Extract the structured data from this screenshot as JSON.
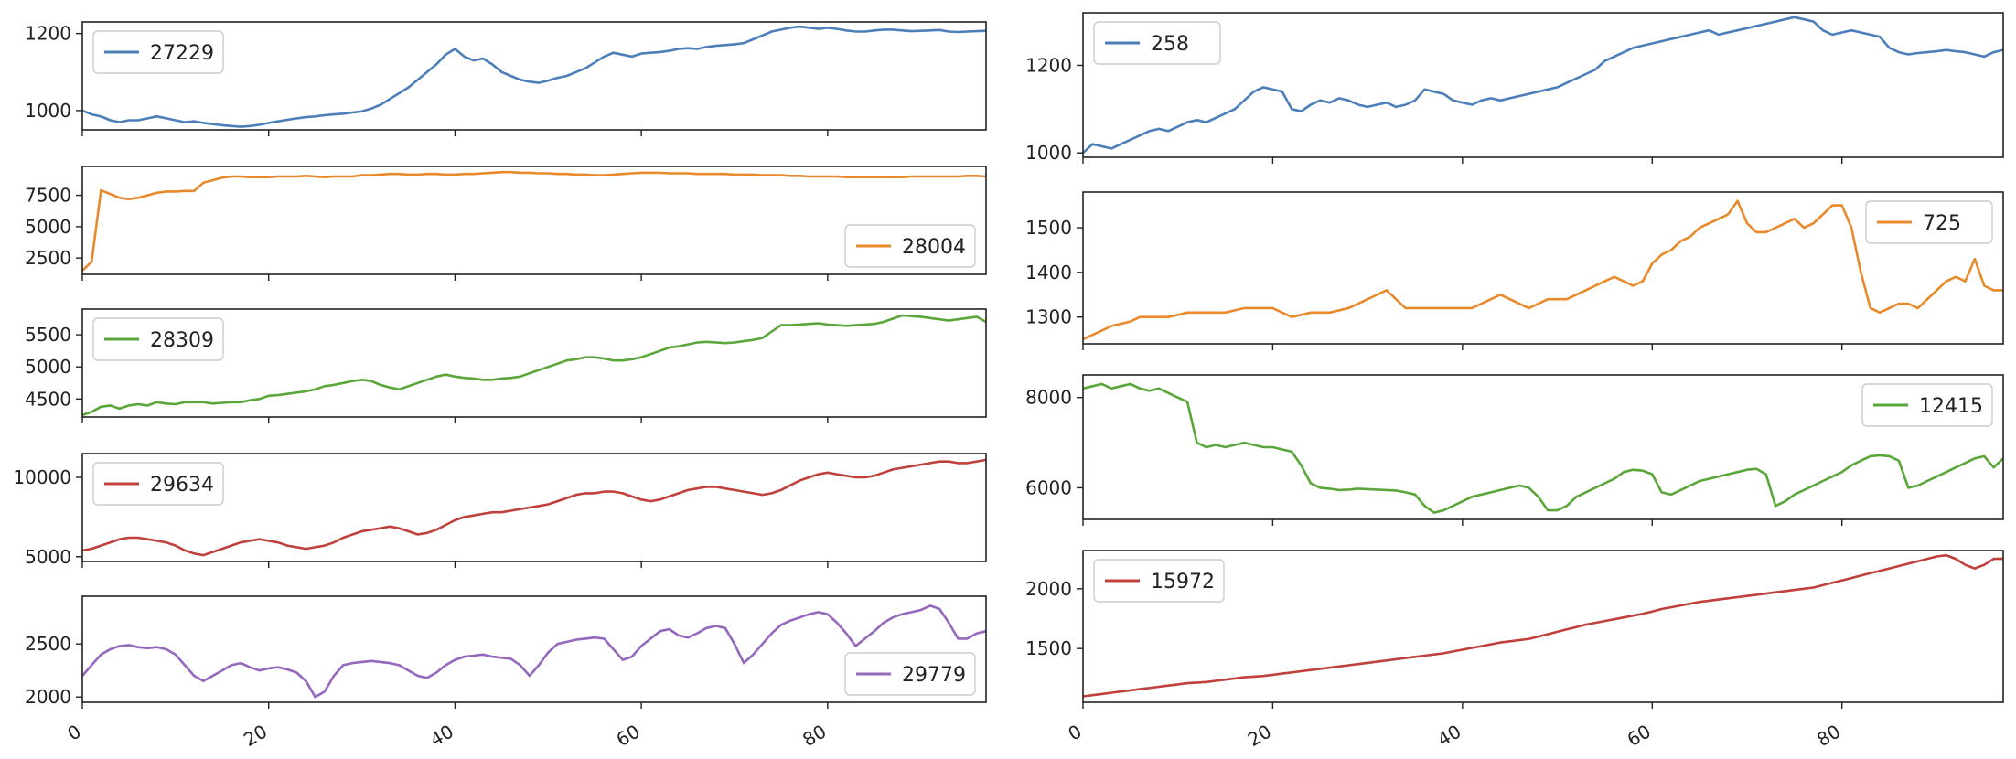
{
  "chart_data": [
    {
      "type": "line",
      "panel": "left-1",
      "x_start": 0,
      "ylim": [
        950,
        1230
      ],
      "yticks": [
        1000,
        1200
      ],
      "xticks_shown": false,
      "legend": "upper left",
      "series": [
        {
          "name": "27229",
          "color": "#4c7fba",
          "values": [
            1000,
            990,
            985,
            975,
            970,
            975,
            975,
            980,
            985,
            980,
            975,
            970,
            972,
            968,
            965,
            962,
            960,
            958,
            960,
            963,
            968,
            972,
            976,
            980,
            983,
            985,
            988,
            990,
            992,
            995,
            998,
            1005,
            1015,
            1030,
            1045,
            1060,
            1080,
            1100,
            1120,
            1145,
            1160,
            1140,
            1130,
            1135,
            1120,
            1100,
            1090,
            1080,
            1075,
            1072,
            1078,
            1085,
            1090,
            1100,
            1110,
            1125,
            1140,
            1150,
            1145,
            1140,
            1148,
            1150,
            1152,
            1155,
            1160,
            1162,
            1160,
            1165,
            1168,
            1170,
            1172,
            1175,
            1185,
            1195,
            1205,
            1210,
            1215,
            1218,
            1215,
            1212,
            1215,
            1212,
            1208,
            1205,
            1205,
            1208,
            1210,
            1210,
            1208,
            1206,
            1207,
            1208,
            1209,
            1205,
            1204,
            1205,
            1206,
            1207
          ]
        }
      ]
    },
    {
      "type": "line",
      "panel": "left-2",
      "x_start": 0,
      "ylim": [
        1200,
        9800
      ],
      "yticks": [
        2500,
        5000,
        7500
      ],
      "xticks_shown": false,
      "legend": "lower right",
      "series": [
        {
          "name": "28004",
          "color": "#e8892b",
          "values": [
            1500,
            2200,
            7900,
            7600,
            7300,
            7200,
            7300,
            7500,
            7700,
            7800,
            7800,
            7850,
            7850,
            8500,
            8700,
            8900,
            9000,
            9000,
            8950,
            8950,
            8950,
            9000,
            9000,
            9000,
            9050,
            9000,
            8950,
            9000,
            9000,
            9000,
            9100,
            9100,
            9150,
            9200,
            9200,
            9150,
            9150,
            9200,
            9200,
            9150,
            9150,
            9200,
            9200,
            9250,
            9300,
            9350,
            9350,
            9300,
            9300,
            9250,
            9250,
            9200,
            9200,
            9150,
            9150,
            9100,
            9100,
            9150,
            9200,
            9250,
            9300,
            9300,
            9300,
            9250,
            9250,
            9250,
            9200,
            9200,
            9200,
            9200,
            9150,
            9150,
            9150,
            9100,
            9100,
            9100,
            9050,
            9050,
            9000,
            9000,
            9000,
            9000,
            8950,
            8950,
            8950,
            8950,
            8950,
            8950,
            8950,
            9000,
            9000,
            9000,
            9000,
            9000,
            9000,
            9050,
            9050,
            9000
          ]
        }
      ]
    },
    {
      "type": "line",
      "panel": "left-3",
      "x_start": 0,
      "ylim": [
        4220,
        5900
      ],
      "yticks": [
        4500,
        5000,
        5500
      ],
      "xticks_shown": false,
      "legend": "upper left",
      "series": [
        {
          "name": "28309",
          "color": "#5aa63b",
          "values": [
            4250,
            4300,
            4380,
            4400,
            4350,
            4400,
            4420,
            4400,
            4450,
            4430,
            4420,
            4450,
            4450,
            4450,
            4430,
            4440,
            4450,
            4450,
            4480,
            4500,
            4550,
            4560,
            4580,
            4600,
            4620,
            4650,
            4700,
            4720,
            4750,
            4780,
            4800,
            4780,
            4720,
            4680,
            4650,
            4700,
            4750,
            4800,
            4850,
            4880,
            4850,
            4830,
            4820,
            4800,
            4800,
            4820,
            4830,
            4850,
            4900,
            4950,
            5000,
            5050,
            5100,
            5120,
            5150,
            5150,
            5130,
            5100,
            5100,
            5120,
            5150,
            5200,
            5250,
            5300,
            5320,
            5350,
            5380,
            5390,
            5380,
            5370,
            5380,
            5400,
            5420,
            5450,
            5550,
            5650,
            5650,
            5660,
            5670,
            5680,
            5660,
            5650,
            5640,
            5650,
            5660,
            5670,
            5700,
            5750,
            5800,
            5790,
            5780,
            5760,
            5740,
            5720,
            5740,
            5760,
            5780,
            5700
          ]
        }
      ]
    },
    {
      "type": "line",
      "panel": "left-4",
      "x_start": 0,
      "ylim": [
        4700,
        11500
      ],
      "yticks": [
        5000,
        10000
      ],
      "xticks_shown": false,
      "legend": "upper left",
      "series": [
        {
          "name": "29634",
          "color": "#c0413b",
          "values": [
            5400,
            5500,
            5700,
            5900,
            6100,
            6200,
            6200,
            6100,
            6000,
            5900,
            5700,
            5400,
            5200,
            5100,
            5300,
            5500,
            5700,
            5900,
            6000,
            6100,
            6000,
            5900,
            5700,
            5600,
            5500,
            5600,
            5700,
            5900,
            6200,
            6400,
            6600,
            6700,
            6800,
            6900,
            6800,
            6600,
            6400,
            6500,
            6700,
            7000,
            7300,
            7500,
            7600,
            7700,
            7800,
            7800,
            7900,
            8000,
            8100,
            8200,
            8300,
            8500,
            8700,
            8900,
            9000,
            9000,
            9100,
            9100,
            9000,
            8800,
            8600,
            8500,
            8600,
            8800,
            9000,
            9200,
            9300,
            9400,
            9400,
            9300,
            9200,
            9100,
            9000,
            8900,
            9000,
            9200,
            9500,
            9800,
            10000,
            10200,
            10300,
            10200,
            10100,
            10000,
            10000,
            10100,
            10300,
            10500,
            10600,
            10700,
            10800,
            10900,
            11000,
            11000,
            10900,
            10900,
            11000,
            11100
          ]
        }
      ]
    },
    {
      "type": "line",
      "panel": "left-5",
      "x_start": 0,
      "ylim": [
        1950,
        2950
      ],
      "yticks": [
        2000,
        2500
      ],
      "xticks": [
        0,
        20,
        40,
        60,
        80
      ],
      "legend": "lower right",
      "series": [
        {
          "name": "29779",
          "color": "#9468bd",
          "values": [
            2200,
            2300,
            2400,
            2450,
            2480,
            2490,
            2470,
            2460,
            2470,
            2450,
            2400,
            2300,
            2200,
            2150,
            2200,
            2250,
            2300,
            2320,
            2280,
            2250,
            2270,
            2280,
            2260,
            2230,
            2150,
            2000,
            2050,
            2200,
            2300,
            2320,
            2330,
            2340,
            2330,
            2320,
            2300,
            2250,
            2200,
            2180,
            2230,
            2300,
            2350,
            2380,
            2390,
            2400,
            2380,
            2370,
            2360,
            2300,
            2200,
            2300,
            2420,
            2500,
            2520,
            2540,
            2550,
            2560,
            2550,
            2450,
            2350,
            2380,
            2480,
            2550,
            2620,
            2640,
            2580,
            2560,
            2600,
            2650,
            2670,
            2650,
            2500,
            2320,
            2400,
            2500,
            2600,
            2680,
            2720,
            2750,
            2780,
            2800,
            2780,
            2700,
            2600,
            2480,
            2550,
            2620,
            2700,
            2750,
            2780,
            2800,
            2820,
            2860,
            2830,
            2700,
            2550,
            2550,
            2600,
            2620
          ]
        }
      ]
    },
    {
      "type": "line",
      "panel": "right-1",
      "x_start": 0,
      "ylim": [
        990,
        1320
      ],
      "yticks": [
        1000,
        1200
      ],
      "xticks_shown": false,
      "legend": "upper left",
      "series": [
        {
          "name": "258",
          "color": "#4c7fba",
          "values": [
            1000,
            1020,
            1015,
            1010,
            1020,
            1030,
            1040,
            1050,
            1055,
            1050,
            1060,
            1070,
            1075,
            1070,
            1080,
            1090,
            1100,
            1120,
            1140,
            1150,
            1145,
            1140,
            1100,
            1095,
            1110,
            1120,
            1115,
            1125,
            1120,
            1110,
            1105,
            1110,
            1115,
            1105,
            1110,
            1120,
            1145,
            1140,
            1135,
            1120,
            1115,
            1110,
            1120,
            1125,
            1120,
            1125,
            1130,
            1135,
            1140,
            1145,
            1150,
            1160,
            1170,
            1180,
            1190,
            1210,
            1220,
            1230,
            1240,
            1245,
            1250,
            1255,
            1260,
            1265,
            1270,
            1275,
            1280,
            1270,
            1275,
            1280,
            1285,
            1290,
            1295,
            1300,
            1305,
            1310,
            1305,
            1300,
            1280,
            1270,
            1275,
            1280,
            1275,
            1270,
            1265,
            1240,
            1230,
            1225,
            1228,
            1230,
            1232,
            1235,
            1232,
            1230,
            1225,
            1220,
            1230,
            1235
          ]
        }
      ]
    },
    {
      "type": "line",
      "panel": "right-2",
      "x_start": 0,
      "ylim": [
        1240,
        1580
      ],
      "yticks": [
        1300,
        1400,
        1500
      ],
      "xticks_shown": false,
      "legend": "upper right",
      "series": [
        {
          "name": "725",
          "color": "#e8892b",
          "values": [
            1250,
            1260,
            1270,
            1280,
            1285,
            1290,
            1300,
            1300,
            1300,
            1300,
            1305,
            1310,
            1310,
            1310,
            1310,
            1310,
            1315,
            1320,
            1320,
            1320,
            1320,
            1310,
            1300,
            1305,
            1310,
            1310,
            1310,
            1315,
            1320,
            1330,
            1340,
            1350,
            1360,
            1340,
            1320,
            1320,
            1320,
            1320,
            1320,
            1320,
            1320,
            1320,
            1330,
            1340,
            1350,
            1340,
            1330,
            1320,
            1330,
            1340,
            1340,
            1340,
            1350,
            1360,
            1370,
            1380,
            1390,
            1380,
            1370,
            1380,
            1420,
            1440,
            1450,
            1470,
            1480,
            1500,
            1510,
            1520,
            1530,
            1560,
            1510,
            1490,
            1490,
            1500,
            1510,
            1520,
            1500,
            1510,
            1530,
            1550,
            1550,
            1500,
            1400,
            1320,
            1310,
            1320,
            1330,
            1330,
            1320,
            1340,
            1360,
            1380,
            1390,
            1380,
            1430,
            1370,
            1360,
            1360
          ]
        }
      ]
    },
    {
      "type": "line",
      "panel": "right-3",
      "x_start": 0,
      "ylim": [
        5300,
        8500
      ],
      "yticks": [
        6000,
        8000
      ],
      "xticks_shown": false,
      "legend": "upper right",
      "series": [
        {
          "name": "12415",
          "color": "#5aa63b",
          "values": [
            8200,
            8250,
            8300,
            8200,
            8250,
            8300,
            8200,
            8150,
            8200,
            8100,
            8000,
            7900,
            7000,
            6900,
            6950,
            6900,
            6950,
            7000,
            6950,
            6900,
            6900,
            6850,
            6800,
            6500,
            6100,
            6000,
            5980,
            5950,
            5960,
            5980,
            5970,
            5960,
            5950,
            5940,
            5900,
            5850,
            5600,
            5450,
            5500,
            5600,
            5700,
            5800,
            5850,
            5900,
            5950,
            6000,
            6050,
            6000,
            5800,
            5500,
            5500,
            5600,
            5800,
            5900,
            6000,
            6100,
            6200,
            6350,
            6400,
            6380,
            6300,
            5900,
            5850,
            5950,
            6050,
            6150,
            6200,
            6250,
            6300,
            6350,
            6400,
            6420,
            6300,
            5600,
            5700,
            5850,
            5950,
            6050,
            6150,
            6250,
            6350,
            6500,
            6600,
            6700,
            6720,
            6700,
            6600,
            6000,
            6050,
            6150,
            6250,
            6350,
            6450,
            6550,
            6650,
            6700,
            6450,
            6650
          ]
        }
      ]
    },
    {
      "type": "line",
      "panel": "right-4",
      "x_start": 0,
      "ylim": [
        1050,
        2320
      ],
      "yticks": [
        1500,
        2000
      ],
      "xticks": [
        0,
        20,
        40,
        60,
        80
      ],
      "legend": "upper left",
      "series": [
        {
          "name": "15972",
          "color": "#c0413b",
          "values": [
            1100,
            1110,
            1120,
            1130,
            1140,
            1150,
            1160,
            1170,
            1180,
            1190,
            1200,
            1210,
            1215,
            1220,
            1230,
            1240,
            1250,
            1260,
            1265,
            1270,
            1280,
            1290,
            1300,
            1310,
            1320,
            1330,
            1340,
            1350,
            1360,
            1370,
            1380,
            1390,
            1400,
            1410,
            1420,
            1430,
            1440,
            1450,
            1460,
            1475,
            1490,
            1505,
            1520,
            1535,
            1550,
            1560,
            1570,
            1580,
            1600,
            1620,
            1640,
            1660,
            1680,
            1700,
            1715,
            1730,
            1745,
            1760,
            1775,
            1790,
            1810,
            1830,
            1845,
            1860,
            1875,
            1890,
            1900,
            1910,
            1920,
            1930,
            1940,
            1950,
            1960,
            1970,
            1980,
            1990,
            2000,
            2010,
            2030,
            2050,
            2070,
            2090,
            2110,
            2130,
            2150,
            2170,
            2190,
            2210,
            2230,
            2250,
            2270,
            2280,
            2250,
            2200,
            2170,
            2200,
            2250,
            2250
          ]
        }
      ]
    }
  ]
}
